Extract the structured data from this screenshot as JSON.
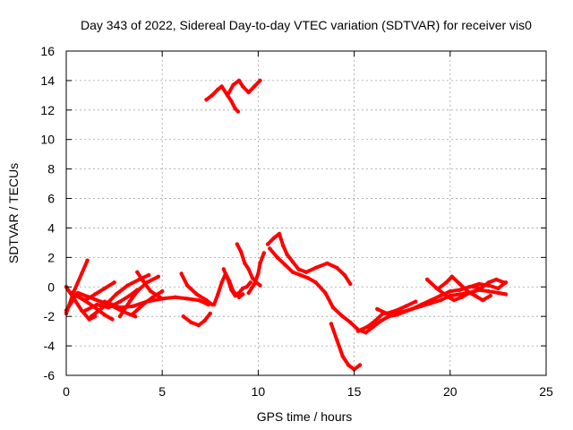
{
  "chart_data": {
    "type": "line",
    "title": "Day 343 of 2022, Sidereal Day-to-day VTEC variation (SDTVAR) for receiver vis0",
    "xlabel": "GPS time / hours",
    "ylabel": "SDTVAR / TECUs",
    "xlim": [
      0,
      25
    ],
    "ylim": [
      -6,
      16
    ],
    "xticks": [
      "0",
      "5",
      "10",
      "15",
      "20",
      "25"
    ],
    "yticks": [
      "-6",
      "-4",
      "-2",
      "0",
      "2",
      "4",
      "6",
      "8",
      "10",
      "12",
      "14",
      "16"
    ],
    "grid": true,
    "series_color": "#ff0000",
    "series": [
      {
        "name": "s1",
        "x": [
          0.0,
          0.4,
          0.8,
          1.1
        ],
        "y": [
          -1.8,
          -0.3,
          0.9,
          1.8
        ]
      },
      {
        "name": "s2",
        "x": [
          0.0,
          0.4,
          0.8,
          1.2,
          1.5
        ],
        "y": [
          0.0,
          -0.8,
          -1.6,
          -2.2,
          -2.0
        ]
      },
      {
        "name": "s3",
        "x": [
          0.3,
          0.8,
          1.4,
          2.0,
          2.4
        ],
        "y": [
          -0.4,
          -0.8,
          -1.3,
          -1.9,
          -2.2
        ]
      },
      {
        "name": "s4",
        "x": [
          0.0,
          0.5,
          1.0,
          1.5,
          2.0,
          2.5
        ],
        "y": [
          -1.6,
          -0.6,
          -0.9,
          -0.5,
          -0.1,
          0.3
        ]
      },
      {
        "name": "s5",
        "x": [
          0.6,
          1.2,
          1.8,
          2.4,
          3.0,
          3.6
        ],
        "y": [
          -0.4,
          -0.7,
          -1.0,
          -1.3,
          -1.7,
          -2.0
        ]
      },
      {
        "name": "s6",
        "x": [
          1.0,
          1.6,
          2.2,
          2.8,
          3.3,
          3.7
        ],
        "y": [
          -1.6,
          -1.2,
          -1.4,
          -1.0,
          -0.6,
          -0.2
        ]
      },
      {
        "name": "s7",
        "x": [
          1.3,
          2.0,
          2.6,
          3.2,
          3.8,
          4.3
        ],
        "y": [
          -2.0,
          -1.3,
          -0.5,
          0.1,
          0.5,
          0.8
        ]
      },
      {
        "name": "s8",
        "x": [
          2.0,
          2.8,
          3.5,
          4.2,
          5.0
        ],
        "y": [
          -1.0,
          -1.4,
          -1.3,
          -1.0,
          -0.8
        ]
      },
      {
        "name": "s9",
        "x": [
          2.8,
          3.3,
          3.7,
          4.2,
          4.8
        ],
        "y": [
          -2.0,
          -1.0,
          -0.3,
          0.3,
          0.7
        ]
      },
      {
        "name": "s10",
        "x": [
          3.7,
          4.0,
          4.4,
          5.0,
          5.7,
          6.3,
          6.9,
          7.4
        ],
        "y": [
          1.0,
          0.4,
          -0.3,
          -0.8,
          -0.7,
          -0.8,
          -0.9,
          -1.2
        ]
      },
      {
        "name": "s11",
        "x": [
          3.5,
          4.0,
          4.5,
          5.0
        ],
        "y": [
          -1.8,
          -1.2,
          -0.7,
          -0.3
        ]
      },
      {
        "name": "s12",
        "x": [
          6.0,
          6.3,
          6.8,
          7.3,
          7.6
        ],
        "y": [
          0.9,
          0.1,
          -0.5,
          -0.9,
          -1.2
        ]
      },
      {
        "name": "s13",
        "x": [
          6.1,
          6.5,
          6.9,
          7.2,
          7.5
        ],
        "y": [
          -2.0,
          -2.4,
          -2.6,
          -2.3,
          -1.8
        ]
      },
      {
        "name": "s14",
        "x": [
          7.7,
          7.9,
          8.1,
          8.3,
          8.5,
          8.7,
          9.0,
          9.2
        ],
        "y": [
          -1.2,
          -0.5,
          0.3,
          0.9,
          0.4,
          -0.3,
          -0.7,
          -0.5
        ]
      },
      {
        "name": "s15",
        "x": [
          8.2,
          8.4,
          8.6,
          8.8,
          9.0,
          9.2,
          9.4,
          9.6
        ],
        "y": [
          1.2,
          0.6,
          -0.2,
          -0.6,
          -0.4,
          -0.1,
          0.0,
          0.3
        ]
      },
      {
        "name": "s16",
        "x": [
          8.9,
          9.1,
          9.3,
          9.5,
          9.7,
          9.9,
          10.1
        ],
        "y": [
          2.9,
          2.4,
          1.6,
          1.2,
          0.6,
          0.3,
          0.1
        ]
      },
      {
        "name": "s17",
        "x": [
          9.5,
          9.8,
          10.0,
          10.1,
          10.3
        ],
        "y": [
          -0.4,
          0.2,
          0.9,
          1.6,
          2.3
        ]
      },
      {
        "name": "s18",
        "x": [
          7.3,
          7.6,
          7.9,
          8.1,
          8.4,
          8.7,
          9.0,
          9.2,
          9.5,
          9.8,
          10.1
        ],
        "y": [
          12.7,
          13.0,
          13.4,
          13.6,
          13.0,
          13.7,
          14.0,
          13.6,
          13.2,
          13.6,
          14.0
        ]
      },
      {
        "name": "s19",
        "x": [
          8.4,
          8.6,
          8.8,
          8.95
        ],
        "y": [
          13.0,
          12.6,
          12.1,
          11.9
        ]
      },
      {
        "name": "s20",
        "x": [
          10.5,
          10.8,
          11.1,
          11.3,
          11.5,
          11.8,
          12.1,
          12.5,
          13.0,
          13.6,
          14.1,
          14.5,
          14.8
        ],
        "y": [
          2.9,
          3.3,
          3.6,
          2.8,
          2.2,
          1.7,
          1.2,
          1.0,
          1.3,
          1.6,
          1.3,
          0.8,
          0.2
        ]
      },
      {
        "name": "s21",
        "x": [
          10.6,
          11.0,
          11.4,
          11.8,
          12.2,
          12.6,
          13.0,
          13.5,
          13.9,
          14.4,
          14.8,
          15.2,
          15.6,
          16.0,
          16.4,
          16.8,
          17.2,
          17.6,
          18.0,
          18.5,
          19.0,
          19.5,
          20.0,
          20.5,
          21.0,
          21.5,
          22.0,
          22.5,
          22.9
        ],
        "y": [
          2.6,
          2.0,
          1.5,
          1.0,
          0.8,
          0.6,
          0.3,
          -0.4,
          -1.4,
          -2.0,
          -2.4,
          -2.9,
          -3.1,
          -2.7,
          -2.3,
          -2.0,
          -1.9,
          -1.7,
          -1.5,
          -1.3,
          -1.1,
          -0.9,
          -0.6,
          -0.5,
          -0.4,
          -0.2,
          -0.3,
          -0.4,
          -0.5
        ]
      },
      {
        "name": "s22",
        "x": [
          13.8,
          14.1,
          14.4,
          14.7,
          15.0,
          15.3
        ],
        "y": [
          -2.5,
          -3.6,
          -4.7,
          -5.3,
          -5.6,
          -5.3
        ]
      },
      {
        "name": "s23",
        "x": [
          15.2,
          15.7,
          16.1,
          16.5,
          17.0,
          17.5,
          18.0,
          18.5,
          19.0,
          19.5,
          20.0,
          20.5,
          21.0,
          21.5,
          22.0,
          22.5,
          22.9
        ],
        "y": [
          -3.0,
          -2.7,
          -2.3,
          -1.8,
          -1.8,
          -1.7,
          -1.5,
          -1.2,
          -0.9,
          -0.6,
          -0.3,
          -0.2,
          0.0,
          0.2,
          0.1,
          -0.1,
          0.3
        ]
      },
      {
        "name": "s24",
        "x": [
          16.2,
          16.7,
          17.2,
          17.7,
          18.2
        ],
        "y": [
          -1.5,
          -1.8,
          -1.6,
          -1.3,
          -1.0
        ]
      },
      {
        "name": "s25",
        "x": [
          18.8,
          19.3,
          19.8,
          20.2,
          20.6,
          21.0
        ],
        "y": [
          0.5,
          -0.1,
          -0.6,
          -0.9,
          -0.7,
          -0.4
        ]
      },
      {
        "name": "s26",
        "x": [
          19.4,
          19.8,
          20.1,
          20.5,
          20.9,
          21.3,
          21.7,
          22.1
        ],
        "y": [
          -0.1,
          0.3,
          0.7,
          0.2,
          -0.3,
          -0.6,
          -0.9,
          -0.6
        ]
      },
      {
        "name": "s27",
        "x": [
          21.2,
          21.6,
          22.0,
          22.4,
          22.8
        ],
        "y": [
          0.0,
          -0.1,
          0.3,
          0.5,
          0.3
        ]
      }
    ]
  }
}
